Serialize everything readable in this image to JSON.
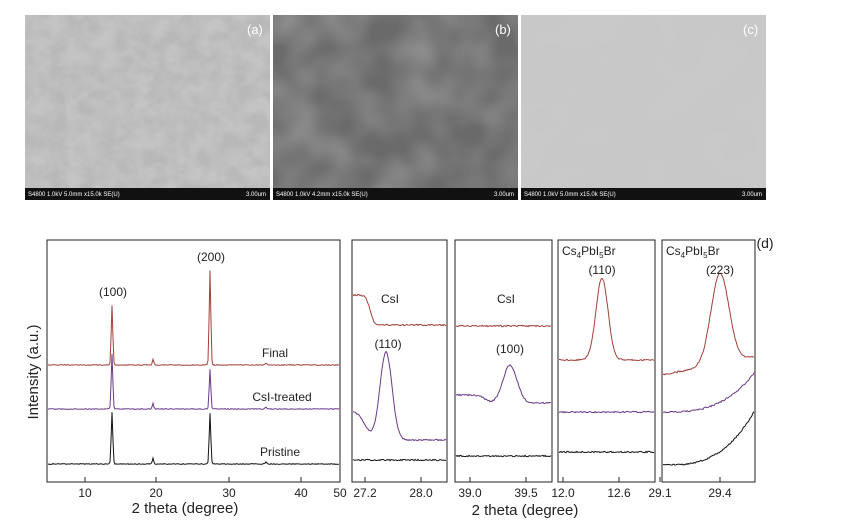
{
  "sem_panels": [
    {
      "label": "(a)",
      "caption": "S4800 1.0kV 5.0mm x15.0k SE(U)",
      "scale": "3.00um"
    },
    {
      "label": "(b)",
      "caption": "S4800 1.0kV 4.2mm x15.0k SE(U)",
      "scale": "3.00um"
    },
    {
      "label": "(c)",
      "caption": "S4800 1.0kV 5.0mm x15.0k SE(U)",
      "scale": "3.00um"
    }
  ],
  "main_plot": {
    "y_label": "Intensity (a.u.)",
    "x_label": "2 theta (degree)",
    "x_ticks": [
      "10",
      "20",
      "30",
      "40",
      "50"
    ],
    "peak_labels": [
      "(100)",
      "(200)"
    ],
    "curve_labels": [
      "Final",
      "CsI-treated",
      "Pristine"
    ]
  },
  "insets": [
    {
      "x_ticks": [
        "27.2",
        "28.0"
      ],
      "annotations": [
        "CsI",
        "(110)"
      ]
    },
    {
      "x_ticks": [
        "39.0",
        "39.5"
      ],
      "annotations": [
        "CsI",
        "(100)"
      ]
    },
    {
      "x_ticks": [
        "12.0",
        "12.6"
      ],
      "phase": [
        "Cs",
        "4",
        "PbI",
        "5",
        "Br"
      ],
      "annotations": [
        "(110)"
      ]
    },
    {
      "x_ticks": [
        "29.1",
        "29.4"
      ],
      "phase": [
        "Cs",
        "4",
        "PbI",
        "5",
        "Br"
      ],
      "annotations": [
        "(223)"
      ]
    }
  ],
  "inset_x_label": "2 theta (degree)",
  "panel_label": "(d)"
}
